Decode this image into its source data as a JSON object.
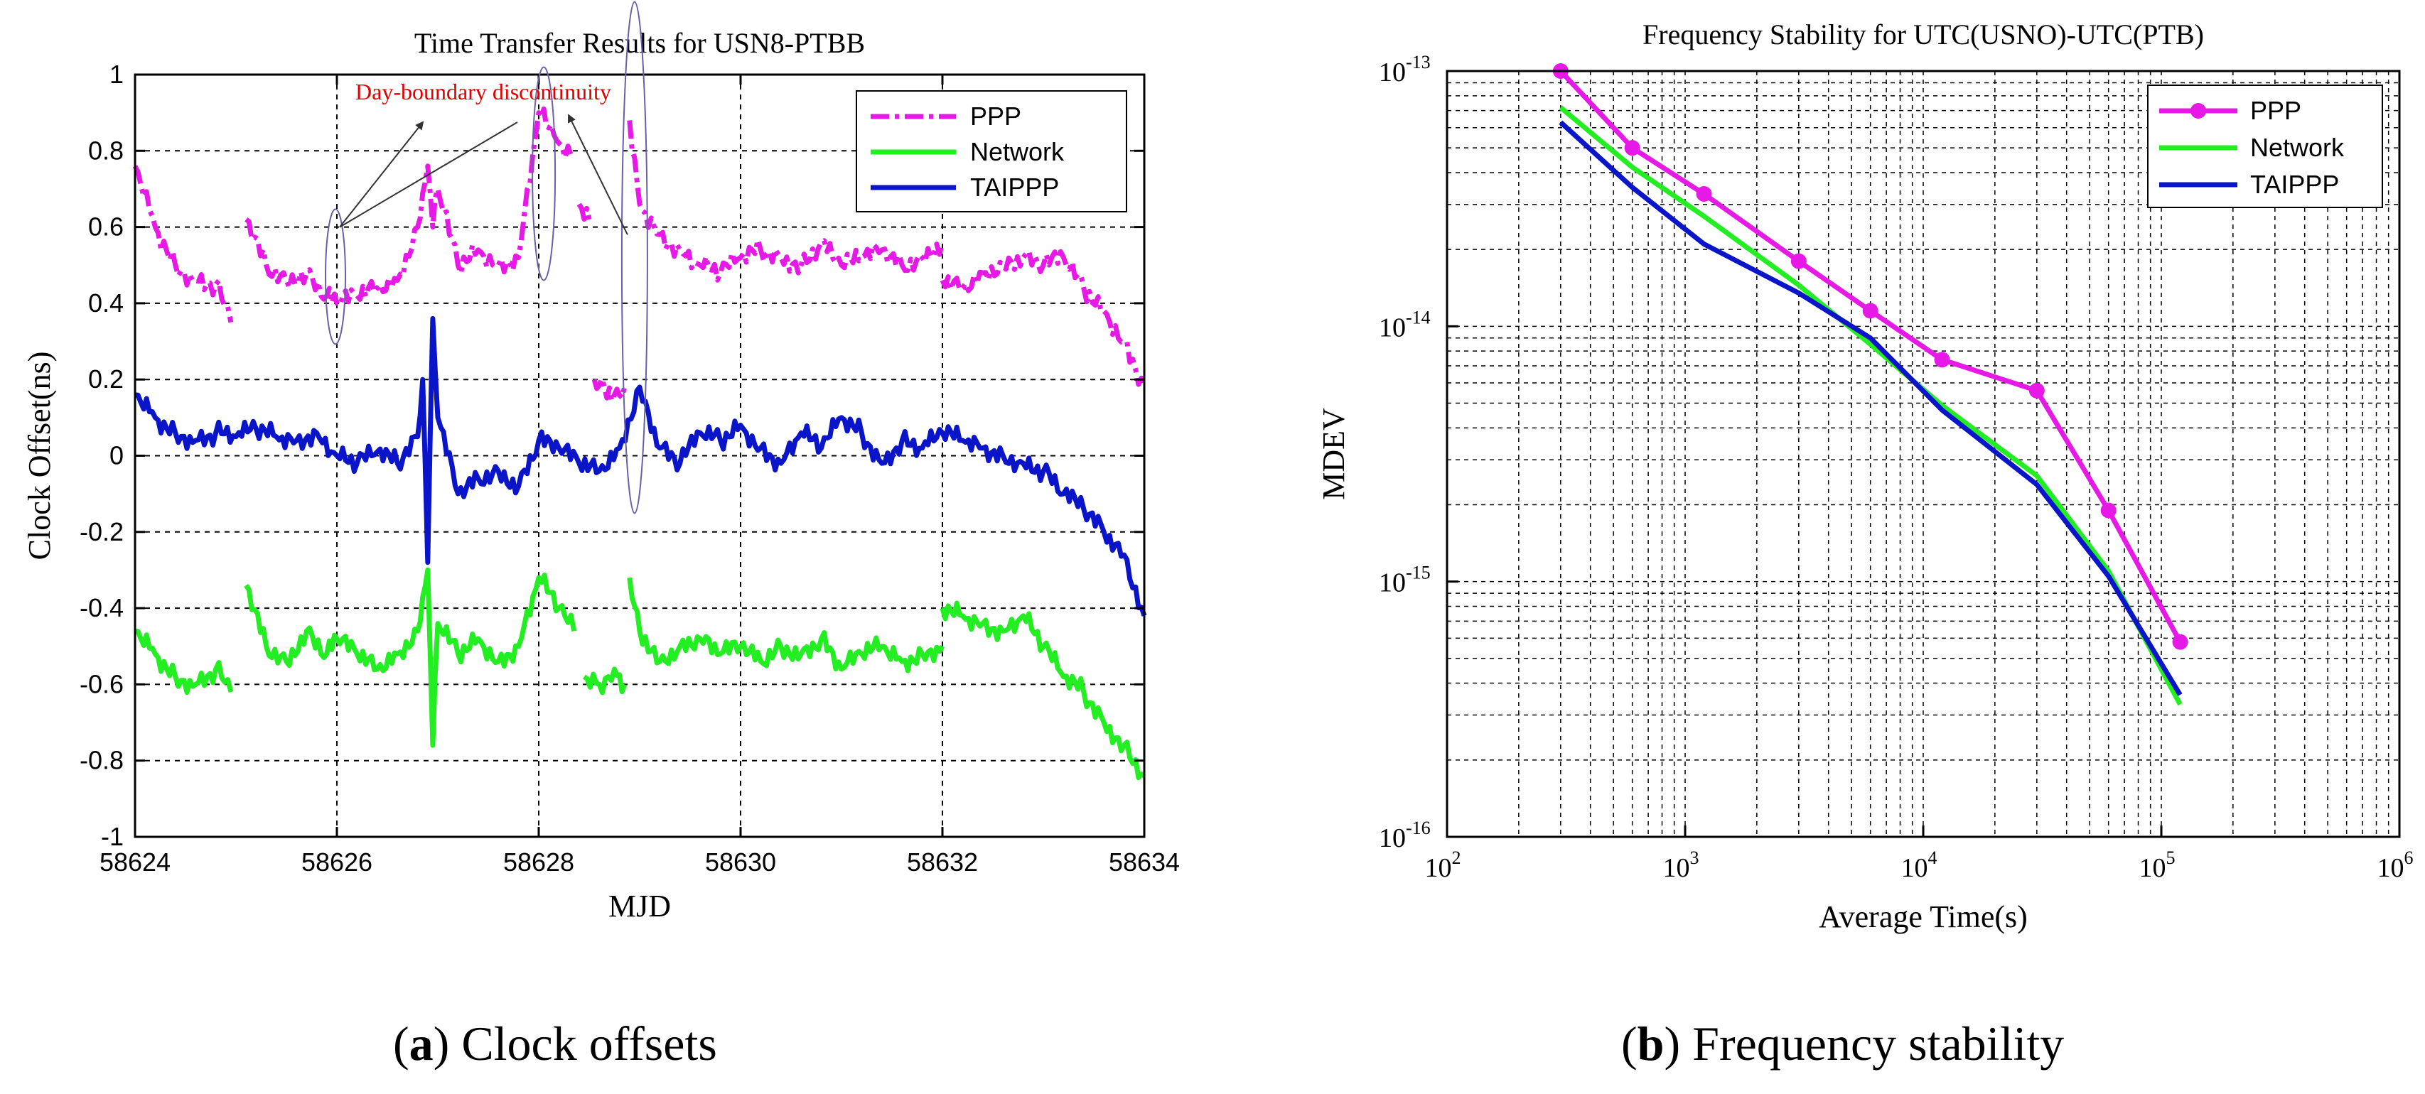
{
  "colors": {
    "ppp": "#E619E6",
    "network": "#22EE22",
    "taippp": "#0A14C8",
    "annotation": "#E00000",
    "axis": "#000000",
    "grid": "#000000"
  },
  "captions": {
    "a_letter": "a",
    "a_text": " Clock offsets",
    "b_letter": "b",
    "b_text": " Frequency stability"
  },
  "chart_data": [
    {
      "type": "line",
      "title": "Time Transfer Results for USN8-PTBB",
      "xlabel": "MJD",
      "ylabel": "Clock Offset(ns)",
      "xlim": [
        58624,
        58634
      ],
      "ylim": [
        -1,
        1
      ],
      "x_ticks": [
        58624,
        58626,
        58628,
        58630,
        58632,
        58634
      ],
      "x_tick_labels": [
        "58624",
        "58626",
        "58628",
        "58630",
        "58632",
        "58634"
      ],
      "y_ticks": [
        -1,
        -0.8,
        -0.6,
        -0.4,
        -0.2,
        0,
        0.2,
        0.4,
        0.6,
        0.8,
        1
      ],
      "y_tick_labels": [
        "-1",
        "-0.8",
        "-0.6",
        "-0.4",
        "-0.2",
        "0",
        "0.2",
        "0.4",
        "0.6",
        "0.8",
        "1"
      ],
      "grid": true,
      "legend_position": "top-right",
      "annotation": "Day-boundary discontinuity",
      "series": [
        {
          "name": "PPP",
          "style": "dash-dot",
          "segments": [
            {
              "x": [
                58624.0,
                58624.2,
                58624.4,
                58624.6,
                58624.8,
                58624.95
              ],
              "y": [
                0.76,
                0.6,
                0.5,
                0.46,
                0.45,
                0.35
              ]
            },
            {
              "x": [
                58625.1,
                58625.3,
                58625.5,
                58625.7,
                58625.9,
                58626.0,
                58626.2,
                58626.4,
                58626.6,
                58626.8,
                58626.9,
                58626.95,
                58627.0,
                58627.2,
                58627.4,
                58627.6,
                58627.8,
                58628.0,
                58628.1,
                58628.2,
                58628.35
              ],
              "y": [
                0.62,
                0.5,
                0.46,
                0.48,
                0.42,
                0.4,
                0.42,
                0.44,
                0.46,
                0.6,
                0.76,
                0.6,
                0.7,
                0.5,
                0.54,
                0.5,
                0.52,
                0.9,
                0.86,
                0.82,
                0.78
              ]
            },
            {
              "x": [
                58628.4,
                58628.5
              ],
              "y": [
                0.66,
                0.62
              ]
            },
            {
              "x": [
                58628.55,
                58628.65,
                58628.75,
                58628.85
              ],
              "y": [
                0.2,
                0.18,
                0.16,
                0.18
              ]
            },
            {
              "x": [
                58628.9,
                58629.0,
                58629.2,
                58629.4,
                58629.6,
                58629.8,
                58630.0,
                58630.2,
                58630.4,
                58630.6,
                58630.8,
                58631.0,
                58631.2,
                58631.4,
                58631.6,
                58631.8,
                58632.0
              ],
              "y": [
                0.88,
                0.66,
                0.58,
                0.54,
                0.5,
                0.48,
                0.52,
                0.54,
                0.52,
                0.5,
                0.56,
                0.5,
                0.52,
                0.54,
                0.5,
                0.52,
                0.56
              ]
            },
            {
              "x": [
                58632.0,
                58632.2,
                58632.4,
                58632.6,
                58632.8,
                58633.0,
                58633.2,
                58633.4,
                58633.6,
                58633.8,
                58634.0
              ],
              "y": [
                0.46,
                0.44,
                0.48,
                0.5,
                0.52,
                0.5,
                0.52,
                0.44,
                0.38,
                0.3,
                0.18
              ]
            }
          ]
        },
        {
          "name": "Network",
          "style": "solid",
          "segments": [
            {
              "x": [
                58624.0,
                58624.2,
                58624.4,
                58624.6,
                58624.8,
                58624.95
              ],
              "y": [
                -0.46,
                -0.52,
                -0.58,
                -0.6,
                -0.56,
                -0.62
              ]
            },
            {
              "x": [
                58625.1,
                58625.3,
                58625.5,
                58625.7,
                58625.9,
                58626.0,
                58626.2,
                58626.4,
                58626.6,
                58626.8,
                58626.9,
                58626.95,
                58627.0,
                58627.2,
                58627.4,
                58627.6,
                58627.8,
                58628.0,
                58628.2,
                58628.35
              ],
              "y": [
                -0.34,
                -0.5,
                -0.54,
                -0.46,
                -0.52,
                -0.48,
                -0.52,
                -0.56,
                -0.52,
                -0.46,
                -0.3,
                -0.76,
                -0.44,
                -0.52,
                -0.48,
                -0.54,
                -0.5,
                -0.32,
                -0.4,
                -0.46
              ]
            },
            {
              "x": [
                58628.45,
                58628.6,
                58628.75,
                58628.85
              ],
              "y": [
                -0.58,
                -0.6,
                -0.56,
                -0.6
              ]
            },
            {
              "x": [
                58628.9,
                58629.0,
                58629.2,
                58629.4,
                58629.6,
                58629.8,
                58630.0,
                58630.2,
                58630.4,
                58630.6,
                58630.8,
                58631.0,
                58631.2,
                58631.4,
                58631.6,
                58631.8,
                58632.0
              ],
              "y": [
                -0.32,
                -0.46,
                -0.54,
                -0.5,
                -0.48,
                -0.52,
                -0.5,
                -0.54,
                -0.5,
                -0.52,
                -0.48,
                -0.56,
                -0.52,
                -0.5,
                -0.54,
                -0.52,
                -0.5
              ]
            },
            {
              "x": [
                58632.0,
                58632.2,
                58632.4,
                58632.6,
                58632.8,
                58633.0,
                58633.2,
                58633.4,
                58633.6,
                58633.8,
                58634.0
              ],
              "y": [
                -0.4,
                -0.42,
                -0.44,
                -0.46,
                -0.42,
                -0.5,
                -0.58,
                -0.62,
                -0.7,
                -0.76,
                -0.84
              ]
            }
          ]
        },
        {
          "name": "TAIPPP",
          "style": "solid",
          "segments": [
            {
              "x": [
                58624.0,
                58624.2,
                58624.4,
                58624.6,
                58624.8,
                58625.0,
                58625.2,
                58625.4,
                58625.6,
                58625.8,
                58626.0,
                58626.2,
                58626.4,
                58626.6,
                58626.8,
                58626.85,
                58626.9,
                58626.95,
                58627.0,
                58627.2,
                58627.4,
                58627.6,
                58627.8,
                58628.0,
                58628.2,
                58628.4,
                58628.6,
                58628.8,
                58629.0,
                58629.2,
                58629.4,
                58629.6,
                58629.8,
                58630.0,
                58630.2,
                58630.4,
                58630.6,
                58630.8,
                58631.0,
                58631.2,
                58631.4,
                58631.6,
                58631.8,
                58632.0,
                58632.2,
                58632.4,
                58632.6,
                58632.8,
                58633.0,
                58633.2,
                58633.4,
                58633.6,
                58633.8,
                58634.0
              ],
              "y": [
                0.16,
                0.1,
                0.06,
                0.04,
                0.06,
                0.05,
                0.07,
                0.05,
                0.04,
                0.06,
                0.0,
                -0.02,
                0.01,
                -0.02,
                0.05,
                0.2,
                -0.28,
                0.36,
                0.1,
                -0.1,
                -0.06,
                -0.04,
                -0.08,
                0.04,
                0.02,
                -0.02,
                -0.04,
                0.02,
                0.18,
                0.02,
                -0.02,
                0.06,
                0.04,
                0.08,
                0.02,
                -0.02,
                0.06,
                0.02,
                0.1,
                0.06,
                -0.02,
                0.04,
                0.02,
                0.06,
                0.04,
                0.02,
                0.0,
                -0.02,
                -0.04,
                -0.1,
                -0.14,
                -0.2,
                -0.26,
                -0.42
              ]
            }
          ]
        }
      ]
    },
    {
      "type": "line",
      "xscale": "log",
      "yscale": "log",
      "title": "Frequency Stability for UTC(USNO)-UTC(PTB)",
      "xlabel": "Average Time(s)",
      "ylabel": "MDEV",
      "xlim": [
        100,
        1000000
      ],
      "ylim": [
        1e-16,
        1e-13
      ],
      "x_tick_exponents": [
        "2",
        "3",
        "4",
        "5",
        "6"
      ],
      "y_tick_exponents": [
        "-13",
        "-14",
        "-15",
        "-16"
      ],
      "tick_base": "10",
      "grid": true,
      "legend_position": "top-right",
      "series": [
        {
          "name": "PPP",
          "marker": "circle",
          "x": [
            300,
            600,
            1200,
            3000,
            6000,
            12000,
            30000,
            60000,
            120000
          ],
          "y": [
            1e-13,
            5e-14,
            3.3e-14,
            1.8e-14,
            1.15e-14,
            7.4e-15,
            5.6e-15,
            1.9e-15,
            5.8e-16
          ]
        },
        {
          "name": "Network",
          "marker": "none",
          "x": [
            300,
            600,
            1200,
            3000,
            6000,
            12000,
            30000,
            60000,
            120000
          ],
          "y": [
            7.2e-14,
            4.2e-14,
            2.7e-14,
            1.45e-14,
            8.5e-15,
            4.9e-15,
            2.6e-15,
            1.1e-15,
            3.3e-16
          ]
        },
        {
          "name": "TAIPPP",
          "marker": "none",
          "x": [
            300,
            600,
            1200,
            3000,
            6000,
            12000,
            30000,
            60000,
            120000
          ],
          "y": [
            6.3e-14,
            3.5e-14,
            2.1e-14,
            1.35e-14,
            9e-15,
            4.7e-15,
            2.4e-15,
            1.05e-15,
            3.6e-16
          ]
        }
      ]
    }
  ]
}
